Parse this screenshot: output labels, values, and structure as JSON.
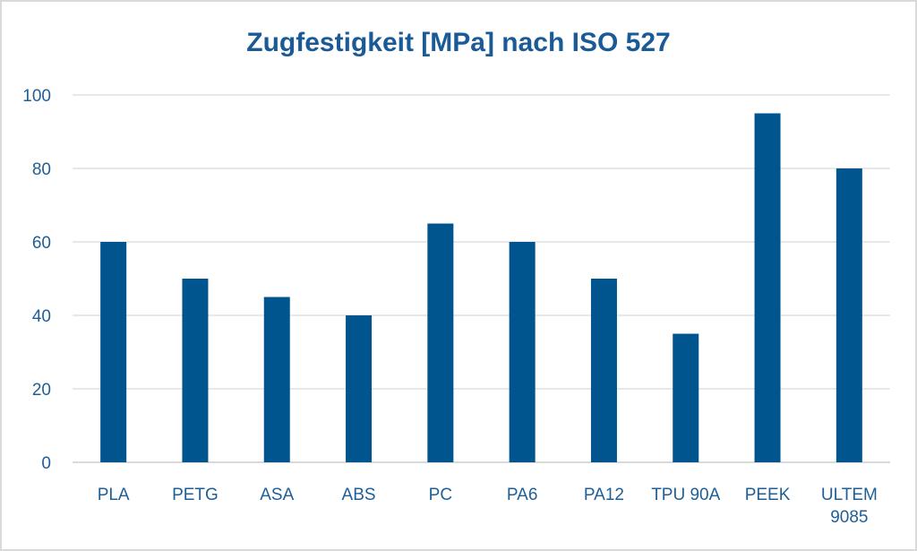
{
  "chart_data": {
    "type": "bar",
    "title": "Zugfestigkeit [MPa] nach ISO 527",
    "xlabel": "",
    "ylabel": "",
    "categories": [
      "PLA",
      "PETG",
      "ASA",
      "ABS",
      "PC",
      "PA6",
      "PA12",
      "TPU 90A",
      "PEEK",
      "ULTEM 9085"
    ],
    "values": [
      60,
      50,
      45,
      40,
      65,
      60,
      50,
      35,
      95,
      80
    ],
    "ylim": [
      0,
      100
    ],
    "yticks": [
      0,
      20,
      40,
      60,
      80,
      100
    ],
    "grid": true,
    "legend": "none",
    "colors": {
      "bar": "#00558f",
      "text": "#1f5e96",
      "title": "#1a5a96",
      "grid": "#d9d9d9"
    }
  }
}
